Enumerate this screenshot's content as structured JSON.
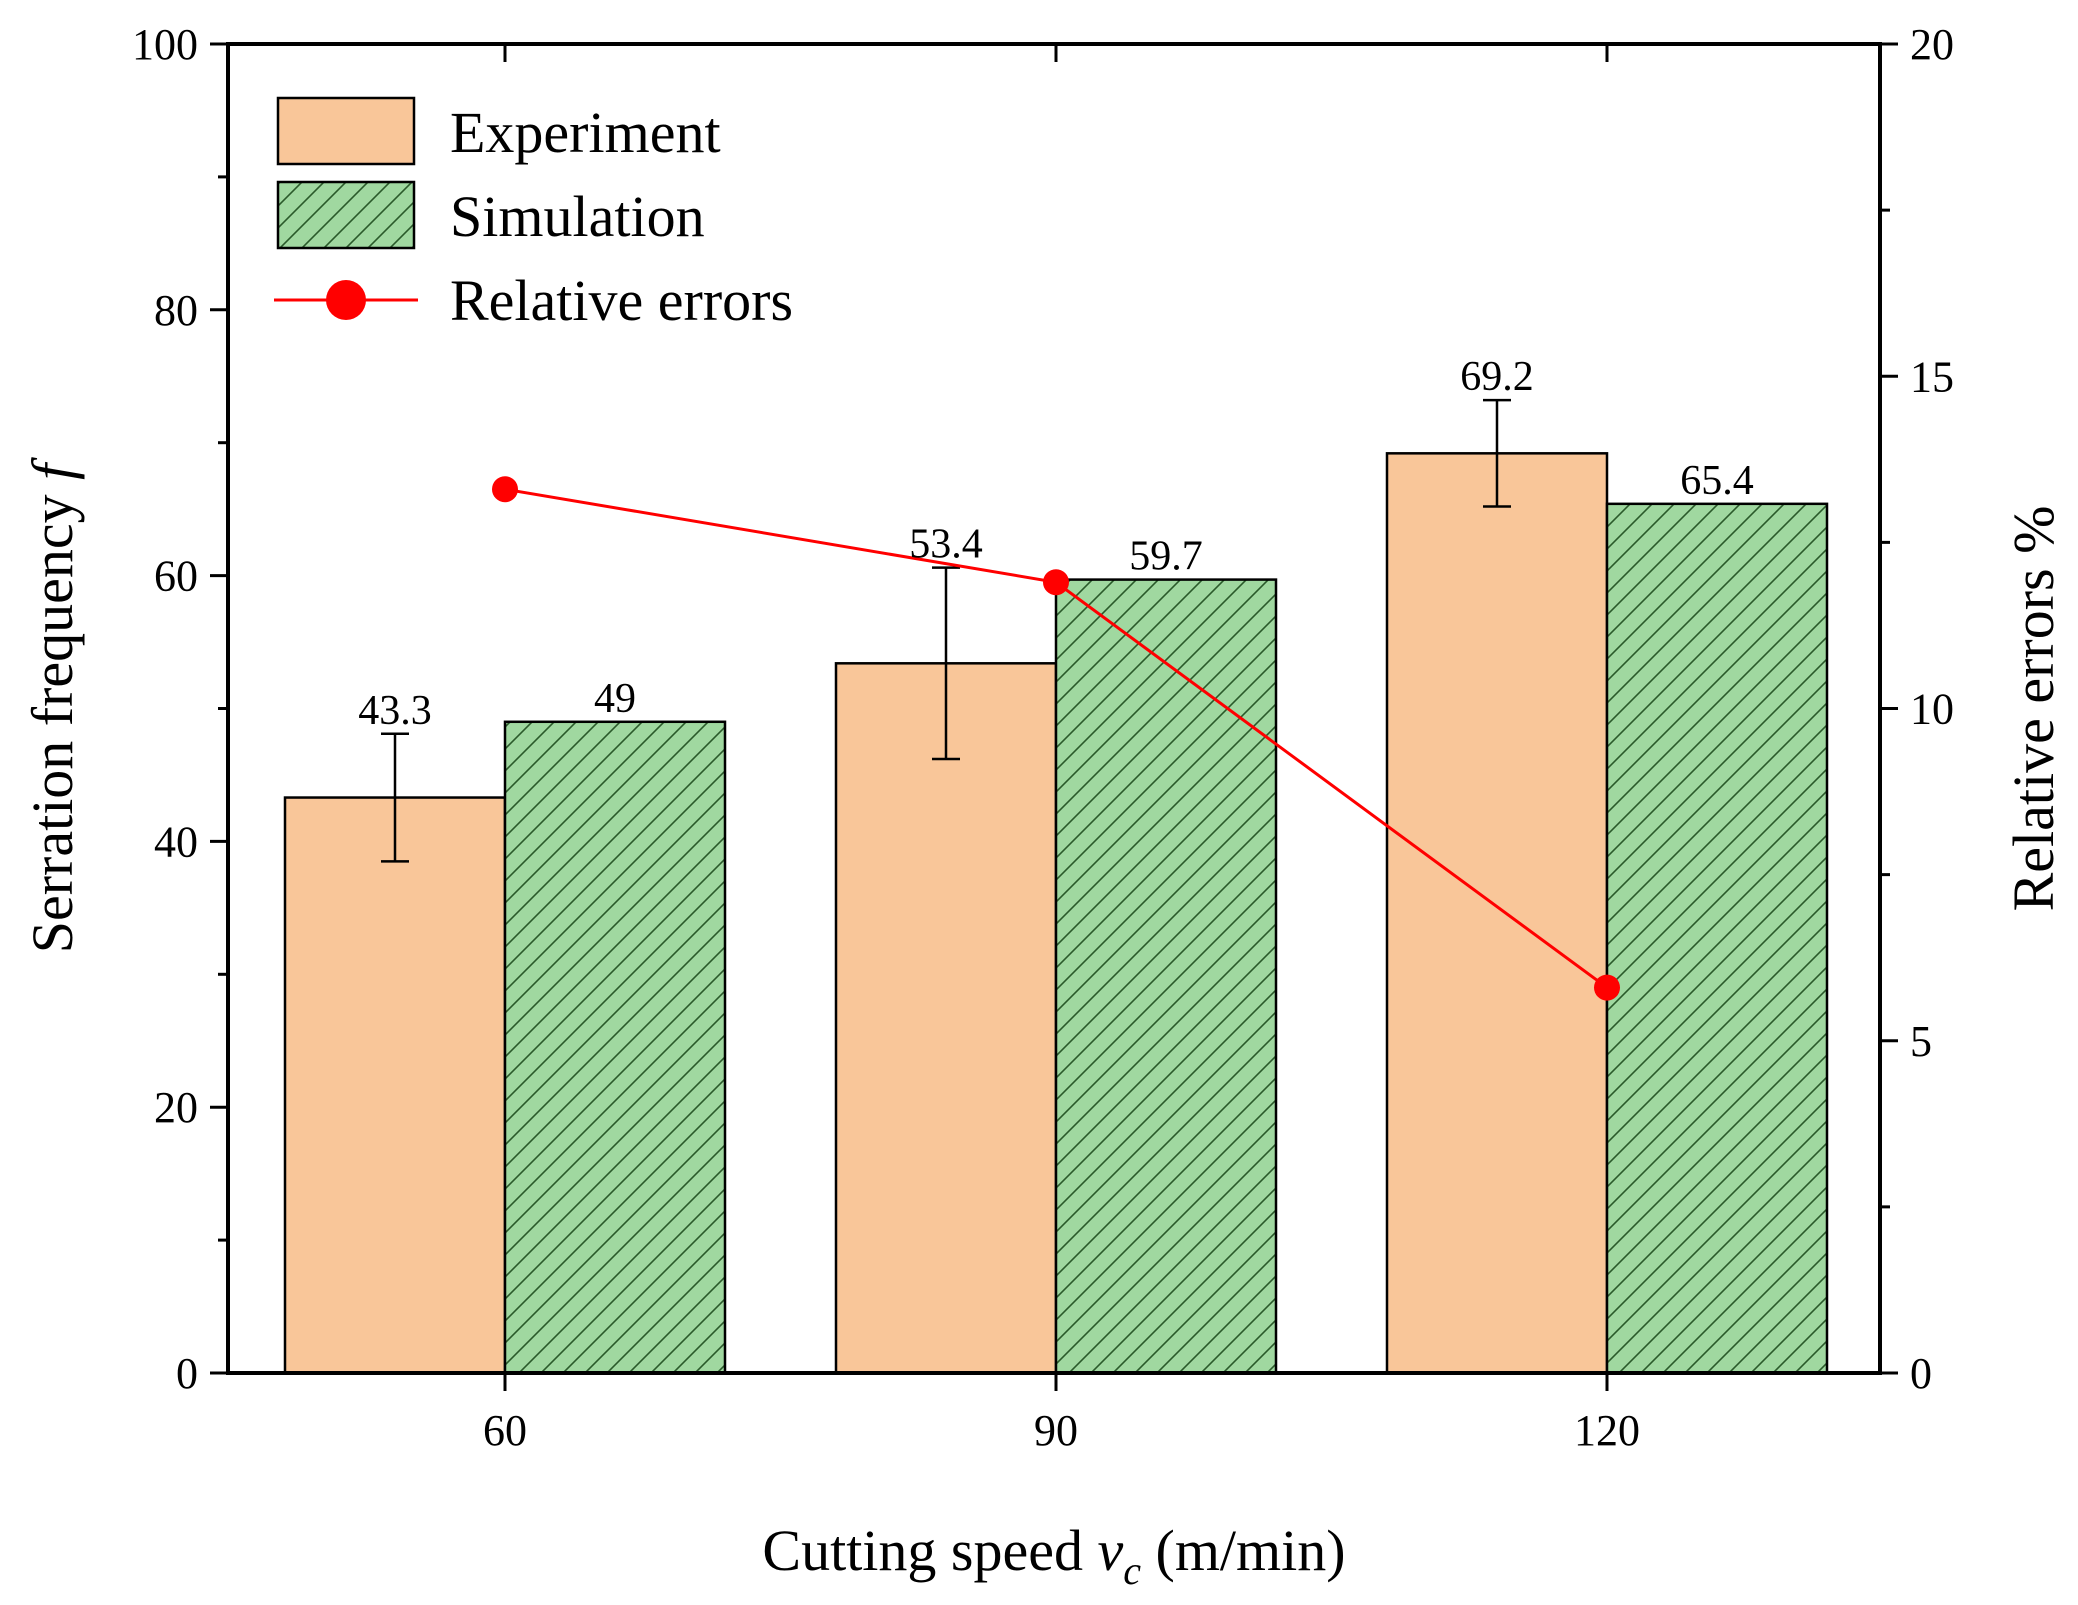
{
  "chart_data": {
    "type": "bar",
    "categories": [
      "60",
      "90",
      "120"
    ],
    "xlabel": {
      "main": "Cutting speed ",
      "var": "v",
      "sub": "c",
      "unit": " (m/min)"
    },
    "ylabel": {
      "main": "Serration frequency ",
      "var": "f"
    },
    "y2label": "Relative errors %",
    "ylim": [
      0,
      100
    ],
    "y2lim": [
      0,
      20
    ],
    "yticks": [
      0,
      20,
      40,
      60,
      80,
      100
    ],
    "y2ticks": [
      0,
      5,
      10,
      15,
      20
    ],
    "series": [
      {
        "name": "Experiment",
        "kind": "bar",
        "color": "#f9c699",
        "values": [
          43.3,
          53.4,
          69.2
        ],
        "error": [
          4.8,
          7.2,
          4.0
        ],
        "labels": [
          "43.3",
          "53.4",
          "69.2"
        ]
      },
      {
        "name": "Simulation",
        "kind": "bar",
        "pattern": "diagonal-hatch",
        "color": "#a0d8a0",
        "values": [
          49,
          59.7,
          65.4
        ],
        "labels": [
          "49",
          "59.7",
          "65.4"
        ]
      },
      {
        "name": "Relative errors",
        "kind": "line",
        "axis": "right",
        "color": "#ff0000",
        "values": [
          13.3,
          11.9,
          5.8
        ]
      }
    ],
    "legend_position": "top-left",
    "grid": false
  }
}
